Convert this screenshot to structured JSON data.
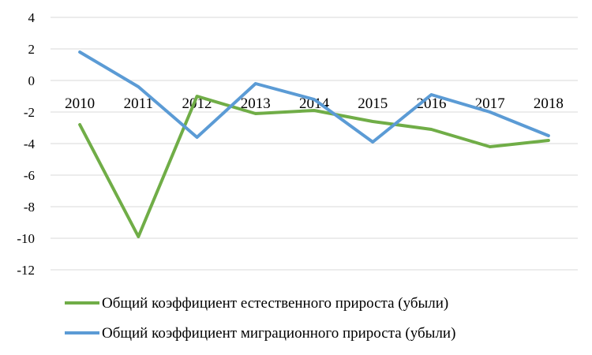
{
  "chart_data": {
    "type": "line",
    "categories": [
      "2010",
      "2011",
      "2012",
      "2013",
      "2014",
      "2015",
      "2016",
      "2017",
      "2018"
    ],
    "series": [
      {
        "name": "Общий коэффициент естественного прироста (убыли)",
        "color": "#70ad47",
        "values": [
          -2.8,
          -9.9,
          -1.0,
          -2.1,
          -1.9,
          -2.6,
          -3.1,
          -4.2,
          -3.8
        ]
      },
      {
        "name": "Общий коэффициент миграционного  прироста (убыли)",
        "color": "#5b9bd5",
        "values": [
          1.8,
          -0.4,
          -3.6,
          -0.2,
          -1.2,
          -3.9,
          -0.9,
          -2.0,
          -3.5
        ]
      }
    ],
    "yticks": [
      "4",
      "2",
      "0",
      "-2",
      "-4",
      "-6",
      "-8",
      "-10",
      "-12"
    ],
    "ylim": [
      -12,
      4
    ],
    "grid": true,
    "legend_position": "bottom"
  }
}
